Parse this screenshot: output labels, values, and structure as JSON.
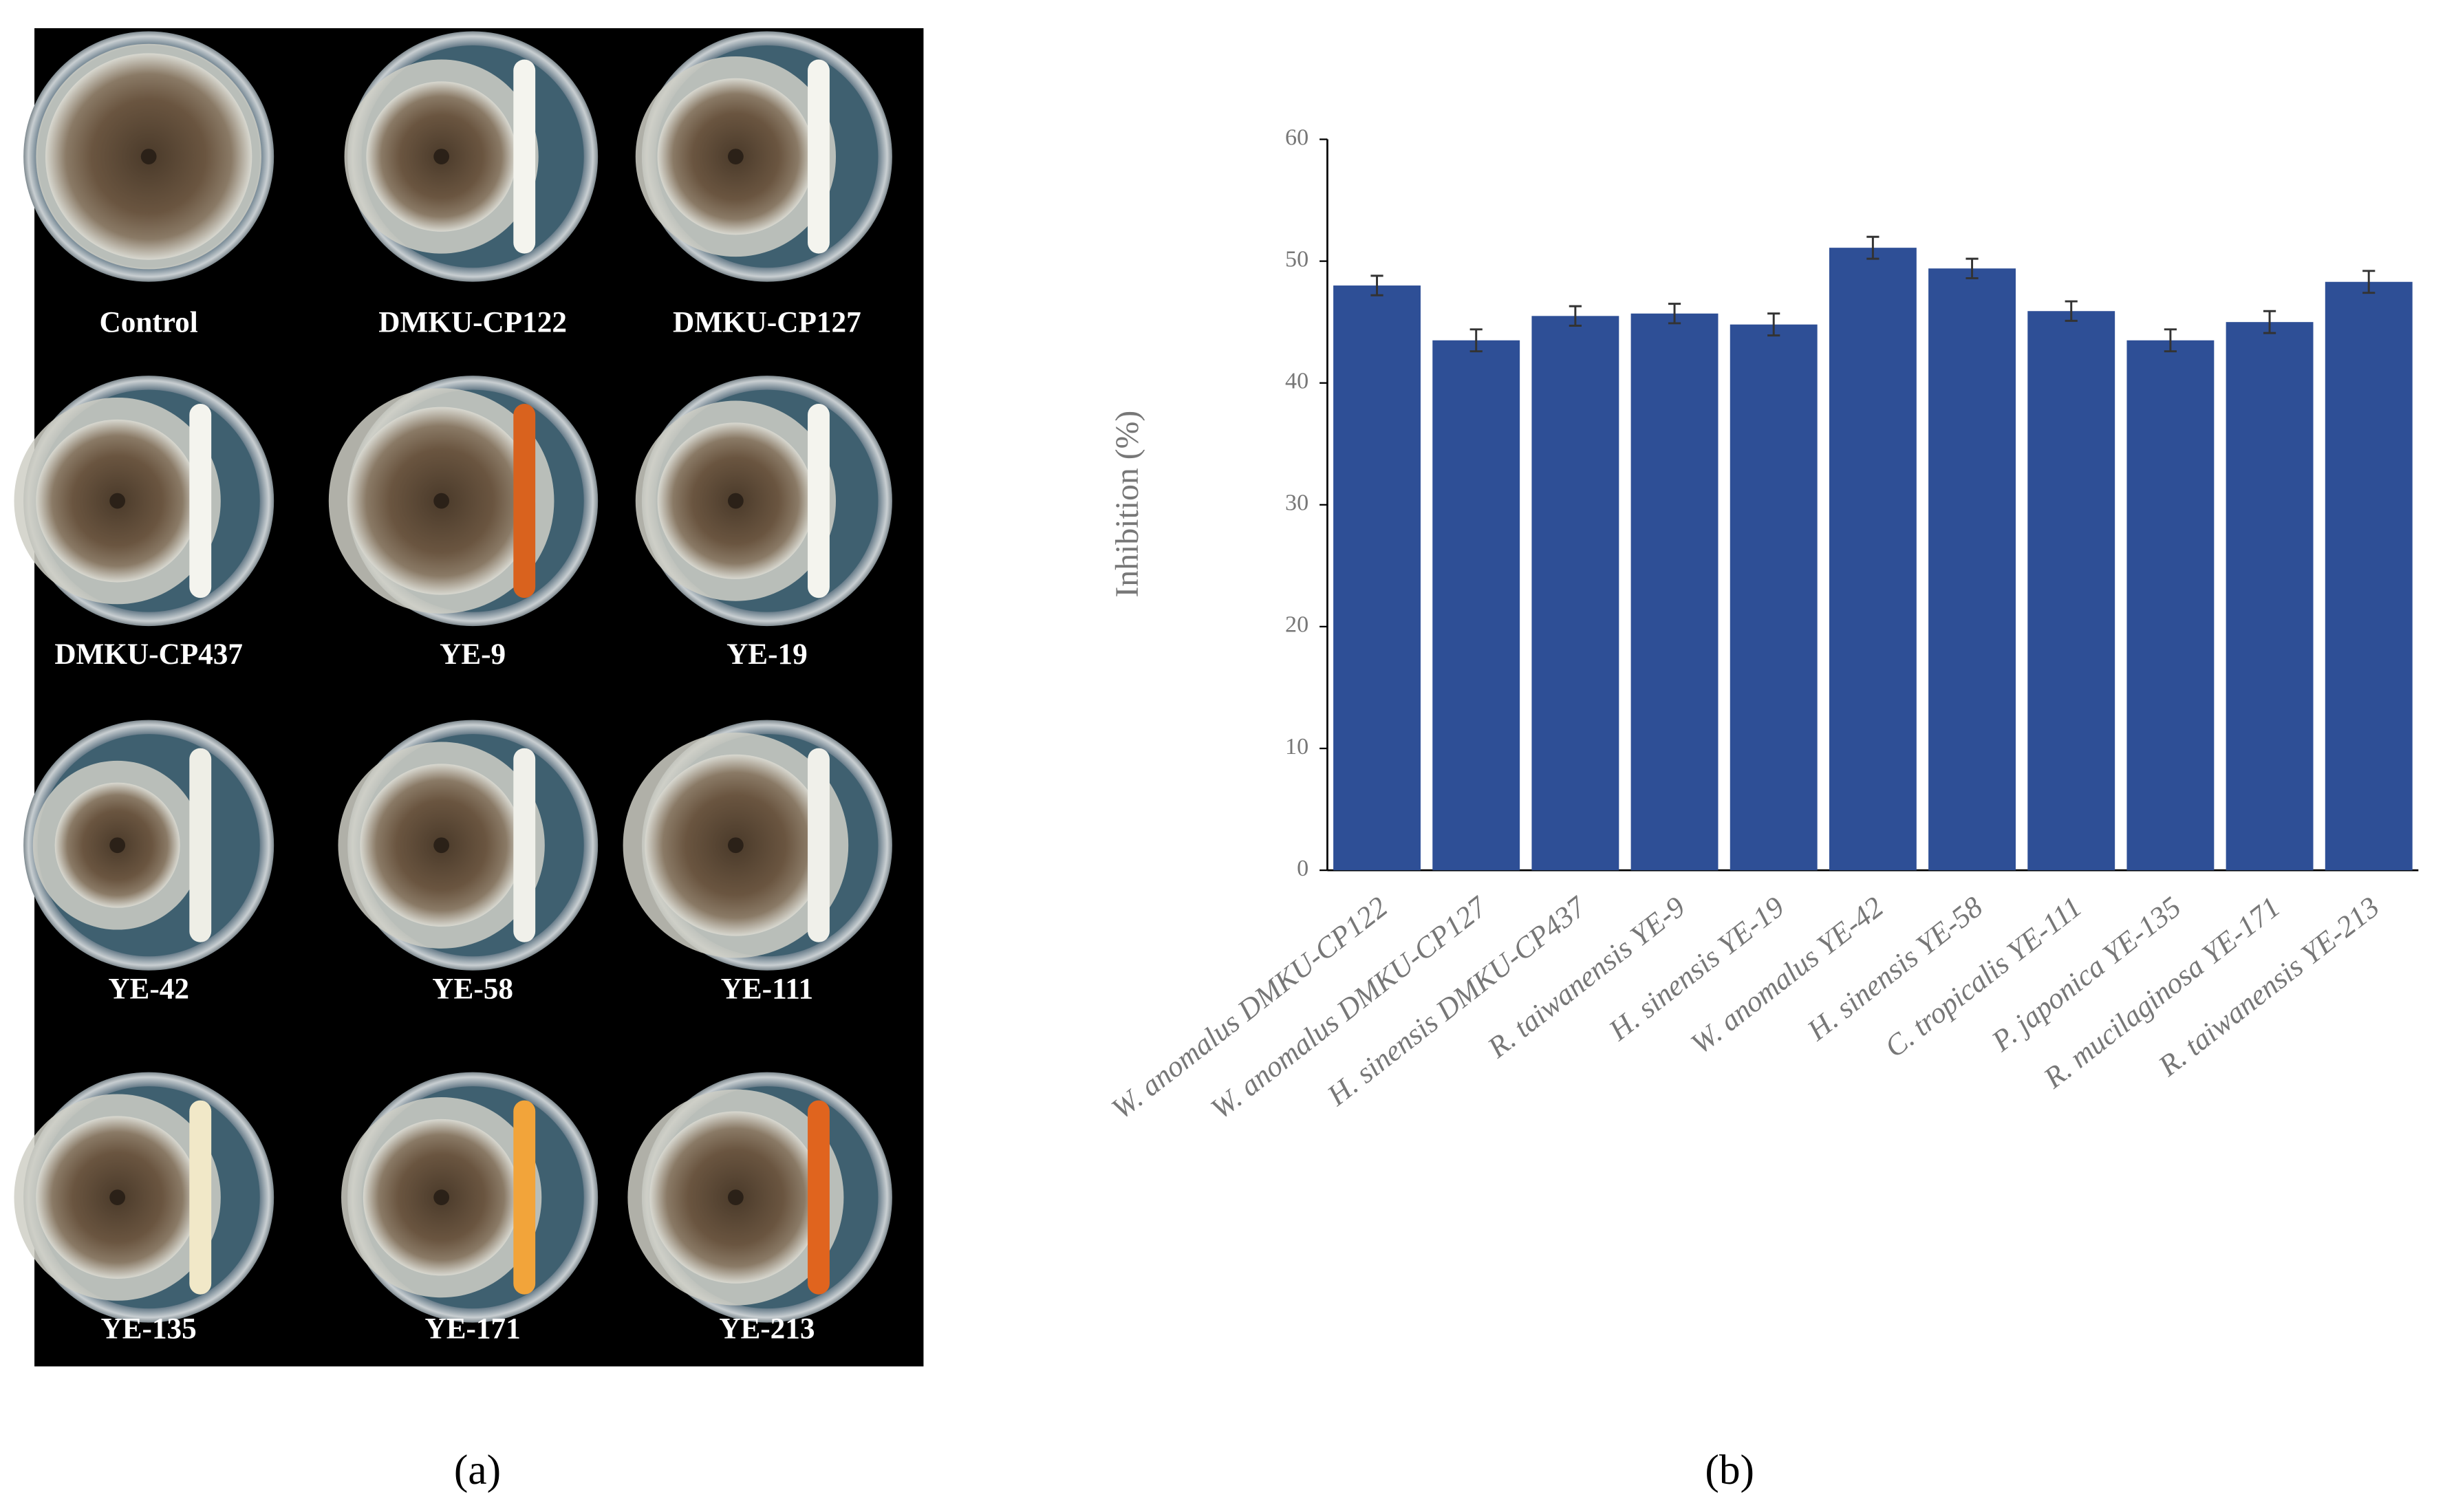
{
  "photo_panel": {
    "labels": [
      "Control",
      "DMKU-CP122",
      "DMKU-CP127",
      "DMKU-CP437",
      "YE-9",
      "YE-19",
      "YE-42",
      "YE-58",
      "YE-111",
      "YE-135",
      "YE-171",
      "YE-213"
    ],
    "caption": "(a)"
  },
  "chart_data": {
    "type": "bar",
    "caption": "(b)",
    "y_label": "Inhibition  (%)",
    "categories": [
      "W. anomalus DMKU-CP122",
      "W. anomalus DMKU-CP127",
      "H. sinensis DMKU-CP437",
      "R. taiwanensis YE-9",
      "H. sinensis YE-19",
      "W. anomalus  YE-42",
      "H. sinensis YE-58",
      "C. tropicalis YE-111",
      "P. japonica YE-135",
      "R. mucilaginosa YE-171",
      "R. taiwanensis YE-213"
    ],
    "values": [
      48.0,
      43.5,
      45.5,
      45.7,
      44.8,
      51.1,
      49.4,
      45.9,
      43.5,
      45.0,
      48.3
    ],
    "errors": [
      0.8,
      0.9,
      0.8,
      0.8,
      0.9,
      0.9,
      0.8,
      0.8,
      0.9,
      0.9,
      0.9
    ],
    "color": "#2e4f96",
    "ylim": [
      0,
      60
    ],
    "yticks": [
      0,
      10,
      20,
      30,
      40,
      50,
      60
    ]
  }
}
